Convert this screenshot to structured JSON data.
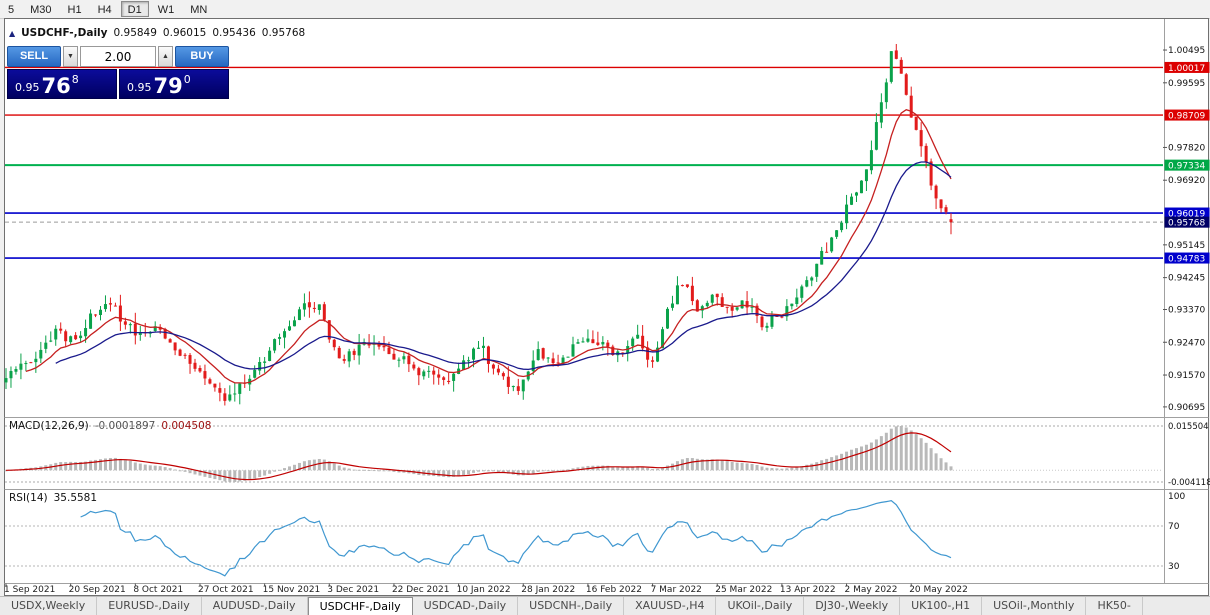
{
  "toolbar": {
    "timeframes": [
      {
        "label": "5",
        "active": false
      },
      {
        "label": "M30",
        "active": false
      },
      {
        "label": "H1",
        "active": false
      },
      {
        "label": "H4",
        "active": false
      },
      {
        "label": "D1",
        "active": true
      },
      {
        "label": "W1",
        "active": false
      },
      {
        "label": "MN",
        "active": false
      }
    ]
  },
  "chart_header": {
    "collapse_icon": "▲",
    "symbol": "USDCHF-,Daily",
    "open": "0.95849",
    "high": "0.96015",
    "low": "0.95436",
    "close": "0.95768"
  },
  "trade_panel": {
    "sell_label": "SELL",
    "buy_label": "BUY",
    "volume": "2.00",
    "down_icon": "▼",
    "up_icon": "▲",
    "bid": {
      "prefix": "0.95",
      "big": "76",
      "sup": "8"
    },
    "ask": {
      "prefix": "0.95",
      "big": "79",
      "sup": "0"
    }
  },
  "price_axis": {
    "ticks": [
      {
        "text": "1.00495",
        "value": 1.00495
      },
      {
        "text": "0.99595",
        "value": 0.99595
      },
      {
        "text": "0.97820",
        "value": 0.9782
      },
      {
        "text": "0.96920",
        "value": 0.9692
      },
      {
        "text": "0.95145",
        "value": 0.95145
      },
      {
        "text": "0.94245",
        "value": 0.94245
      },
      {
        "text": "0.93370",
        "value": 0.9337
      },
      {
        "text": "0.92470",
        "value": 0.9247
      },
      {
        "text": "0.91570",
        "value": 0.9157
      },
      {
        "text": "0.90695",
        "value": 0.90695
      }
    ],
    "badges": [
      {
        "text": "1.00017",
        "value": 1.00017,
        "color": "#dc0000"
      },
      {
        "text": "0.98709",
        "value": 0.98709,
        "color": "#dc0000"
      },
      {
        "text": "0.97334",
        "value": 0.97334,
        "color": "#00a847"
      },
      {
        "text": "0.96019",
        "value": 0.96019,
        "color": "#0000cc"
      },
      {
        "text": "0.94783",
        "value": 0.94783,
        "color": "#0000cc"
      },
      {
        "text": "0.95768",
        "value": 0.95768,
        "color": "#000066"
      }
    ]
  },
  "macd_panel": {
    "title": "MACD(12,26,9)",
    "main_value": "-0.0001897",
    "signal_value": "0.004508",
    "axis_max": "0.015504",
    "axis_min": "-0.004118",
    "histogram_color": "#b9b9b9",
    "signal_color": "#c00000"
  },
  "rsi_panel": {
    "title": "RSI(14)",
    "value": "35.5581",
    "line_color": "#3f97d0",
    "levels": [
      {
        "text": "100",
        "value": 100,
        "line": false
      },
      {
        "text": "70",
        "value": 70,
        "line": true
      },
      {
        "text": "30",
        "value": 30,
        "line": true
      }
    ]
  },
  "date_axis": {
    "label_every_bars": 13,
    "labels": [
      "1 Sep 2021",
      "20 Sep 2021",
      "8 Oct 2021",
      "27 Oct 2021",
      "15 Nov 2021",
      "3 Dec 2021",
      "22 Dec 2021",
      "10 Jan 2022",
      "28 Jan 2022",
      "16 Feb 2022",
      "7 Mar 2022",
      "25 Mar 2022",
      "13 Apr 2022",
      "2 May 2022",
      "20 May 2022"
    ]
  },
  "tabs": {
    "items": [
      {
        "label": "USDX,Weekly",
        "active": false
      },
      {
        "label": "EURUSD-,Daily",
        "active": false
      },
      {
        "label": "AUDUSD-,Daily",
        "active": false
      },
      {
        "label": "USDCHF-,Daily",
        "active": true
      },
      {
        "label": "USDCAD-,Daily",
        "active": false
      },
      {
        "label": "USDCNH-,Daily",
        "active": false
      },
      {
        "label": "XAUUSD-,H4",
        "active": false
      },
      {
        "label": "UKOil-,Daily",
        "active": false
      },
      {
        "label": "DJ30-,Weekly",
        "active": false
      },
      {
        "label": "UK100-,H1",
        "active": false
      },
      {
        "label": "USOil-,Monthly",
        "active": false
      },
      {
        "label": "HK50-",
        "active": false
      }
    ]
  },
  "chart_data": {
    "type": "candlestick",
    "symbol": "USDCHF-",
    "timeframe": "Daily",
    "bars": 191,
    "price_range": [
      0.905,
      1.011
    ],
    "last_ohlc": {
      "open": 0.95849,
      "high": 0.96015,
      "low": 0.95436,
      "close": 0.95768
    },
    "bid": 0.95768,
    "ask": 0.9579,
    "up_color": "#0aa24a",
    "down_color": "#e21b1b",
    "anchors": [
      [
        0,
        0.9155
      ],
      [
        5,
        0.9195
      ],
      [
        10,
        0.9272
      ],
      [
        14,
        0.9252
      ],
      [
        18,
        0.9325
      ],
      [
        21,
        0.9358
      ],
      [
        24,
        0.9298
      ],
      [
        27,
        0.9268
      ],
      [
        30,
        0.9292
      ],
      [
        34,
        0.9232
      ],
      [
        38,
        0.9172
      ],
      [
        42,
        0.9112
      ],
      [
        45,
        0.9092
      ],
      [
        48,
        0.9138
      ],
      [
        52,
        0.9198
      ],
      [
        56,
        0.9288
      ],
      [
        60,
        0.9342
      ],
      [
        63,
        0.9352
      ],
      [
        65,
        0.9245
      ],
      [
        68,
        0.9202
      ],
      [
        72,
        0.9248
      ],
      [
        76,
        0.9222
      ],
      [
        80,
        0.9202
      ],
      [
        84,
        0.9162
      ],
      [
        88,
        0.9142
      ],
      [
        91,
        0.9175
      ],
      [
        95,
        0.9238
      ],
      [
        99,
        0.9152
      ],
      [
        103,
        0.9122
      ],
      [
        107,
        0.9218
      ],
      [
        111,
        0.9192
      ],
      [
        115,
        0.9248
      ],
      [
        119,
        0.9242
      ],
      [
        123,
        0.9212
      ],
      [
        127,
        0.9262
      ],
      [
        130,
        0.9188
      ],
      [
        133,
        0.9328
      ],
      [
        136,
        0.9412
      ],
      [
        139,
        0.9328
      ],
      [
        142,
        0.9372
      ],
      [
        145,
        0.9338
      ],
      [
        149,
        0.9355
      ],
      [
        152,
        0.9292
      ],
      [
        155,
        0.9318
      ],
      [
        158,
        0.9342
      ],
      [
        161,
        0.9418
      ],
      [
        164,
        0.9488
      ],
      [
        167,
        0.9558
      ],
      [
        170,
        0.9638
      ],
      [
        173,
        0.9715
      ],
      [
        176,
        0.9905
      ],
      [
        178,
        1.0038
      ],
      [
        180,
        0.9992
      ],
      [
        182,
        0.9868
      ],
      [
        184,
        0.9792
      ],
      [
        186,
        0.9682
      ],
      [
        188,
        0.9628
      ],
      [
        190,
        0.9577
      ]
    ],
    "moving_averages": [
      {
        "name": "fast-ma",
        "period": 10,
        "color": "#c62020"
      },
      {
        "name": "slow-ma",
        "period": 24,
        "color": "#1a1a8c"
      }
    ],
    "levels": [
      {
        "value": 1.00017,
        "color": "#dc0000",
        "width": 1.4,
        "style": "solid"
      },
      {
        "value": 0.98709,
        "color": "#dc0000",
        "width": 1.4,
        "style": "solid"
      },
      {
        "value": 0.97334,
        "color": "#00b14f",
        "width": 2,
        "style": "solid"
      },
      {
        "value": 0.96019,
        "color": "#0000cc",
        "width": 1.6,
        "style": "solid"
      },
      {
        "value": 0.94783,
        "color": "#0000cc",
        "width": 1.6,
        "style": "solid"
      },
      {
        "value": 0.95768,
        "color": "#9a9a9a",
        "width": 1,
        "style": "dashed"
      }
    ],
    "indicators": [
      {
        "type": "MACD",
        "fast": 12,
        "slow": 26,
        "signal": 9,
        "shown_main": -0.0001897,
        "shown_signal": 0.004508
      },
      {
        "type": "RSI",
        "period": 14,
        "shown_value": 35.5581
      }
    ]
  }
}
